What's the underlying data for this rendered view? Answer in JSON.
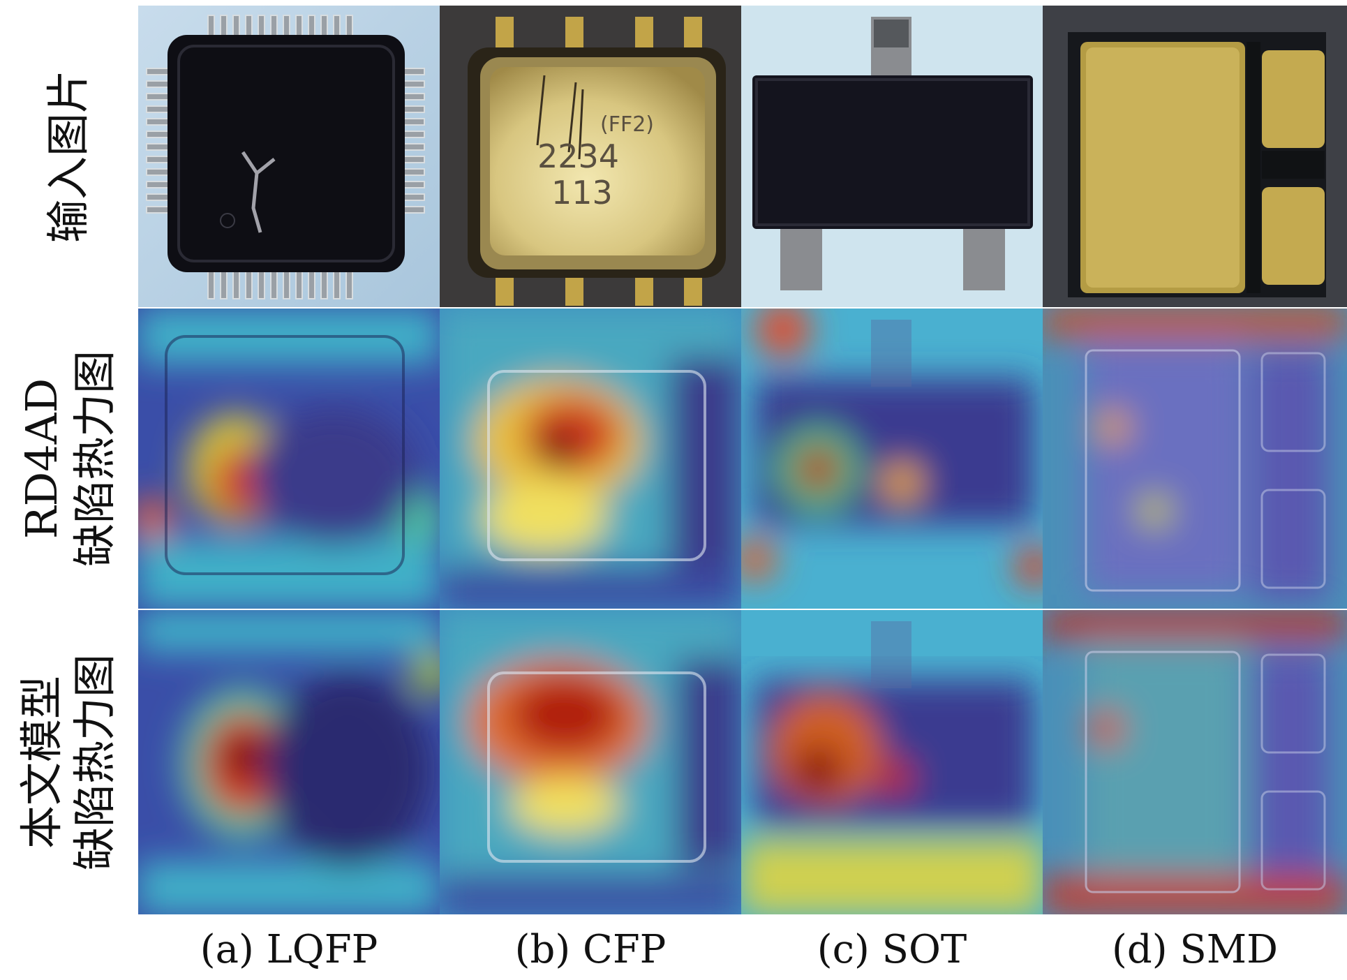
{
  "rows": [
    {
      "line1": "",
      "line2": "输入图片"
    },
    {
      "line1": "RD4AD",
      "line2": "缺陷热力图"
    },
    {
      "line1": "本文模型",
      "line2": "缺陷热力图"
    }
  ],
  "columns": [
    {
      "caption": "(a) LQFP",
      "chip_text": ""
    },
    {
      "caption": "(b) CFP",
      "chip_text_line1": "2234",
      "chip_text_line2": "113",
      "chip_text_top": "(FF2)"
    },
    {
      "caption": "(c) SOT"
    },
    {
      "caption": "(d) SMD"
    }
  ],
  "colors": {
    "heat_cold": "#3a3a9a",
    "heat_cool": "#3fb3c8",
    "heat_warm": "#f0e040",
    "heat_hot": "#d02010",
    "gold": "#b8a040",
    "chip_black": "#141420",
    "bg_blue": "#b9d4e4"
  }
}
